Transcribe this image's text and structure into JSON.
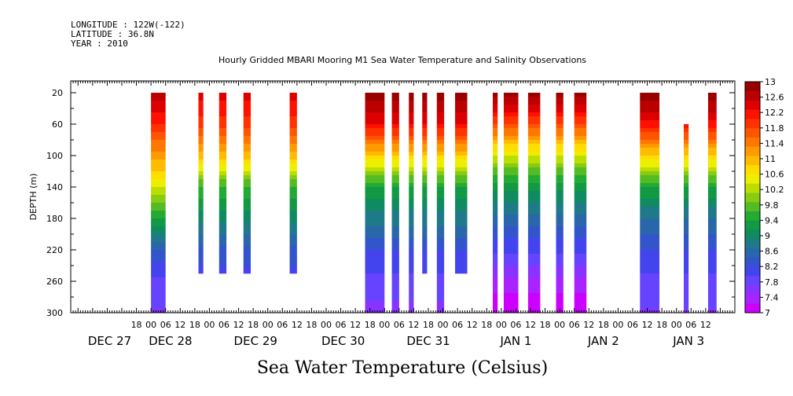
{
  "header": {
    "longitude": "LONGITUDE : 122W(-122)",
    "latitude": "LATITUDE : 36.8N",
    "year": "YEAR : 2010",
    "title": "Hourly Gridded MBARI Mooring M1 Sea Water Temperature and Salinity Observations"
  },
  "footer": {
    "variable_title": "Sea Water Temperature (Celsius)"
  },
  "chart_data": {
    "type": "heatmap",
    "title": "Hourly Gridded MBARI Mooring M1 Sea Water Temperature and Salinity Observations",
    "subtitle": "Sea Water Temperature (Celsius)",
    "ylabel": "DEPTH (m)",
    "ylim": [
      300,
      5
    ],
    "y_ticks": [
      20,
      60,
      100,
      140,
      180,
      220,
      260,
      300
    ],
    "x_range_hours": [
      -33,
      240
    ],
    "x_tick_labels": [
      {
        "hour": -6,
        "label": "18"
      },
      {
        "hour": 0,
        "label": "00"
      },
      {
        "hour": 6,
        "label": "06"
      },
      {
        "hour": 12,
        "label": "12"
      },
      {
        "hour": 18,
        "label": "18"
      },
      {
        "hour": 24,
        "label": "00"
      },
      {
        "hour": 30,
        "label": "06"
      },
      {
        "hour": 36,
        "label": "12"
      },
      {
        "hour": 42,
        "label": "18"
      },
      {
        "hour": 48,
        "label": "00"
      },
      {
        "hour": 54,
        "label": "06"
      },
      {
        "hour": 60,
        "label": "12"
      },
      {
        "hour": 66,
        "label": "18"
      },
      {
        "hour": 72,
        "label": "00"
      },
      {
        "hour": 78,
        "label": "06"
      },
      {
        "hour": 84,
        "label": "12"
      },
      {
        "hour": 90,
        "label": "18"
      },
      {
        "hour": 96,
        "label": "00"
      },
      {
        "hour": 102,
        "label": "06"
      },
      {
        "hour": 108,
        "label": "12"
      },
      {
        "hour": 114,
        "label": "18"
      },
      {
        "hour": 120,
        "label": "00"
      },
      {
        "hour": 126,
        "label": "06"
      },
      {
        "hour": 132,
        "label": "12"
      },
      {
        "hour": 138,
        "label": "18"
      },
      {
        "hour": 144,
        "label": "00"
      },
      {
        "hour": 150,
        "label": "06"
      },
      {
        "hour": 156,
        "label": "12"
      },
      {
        "hour": 162,
        "label": "18"
      },
      {
        "hour": 168,
        "label": "00"
      },
      {
        "hour": 174,
        "label": "06"
      },
      {
        "hour": 180,
        "label": "12"
      },
      {
        "hour": 186,
        "label": "18"
      },
      {
        "hour": 192,
        "label": "00"
      },
      {
        "hour": 198,
        "label": "06"
      },
      {
        "hour": 204,
        "label": "12"
      },
      {
        "hour": 210,
        "label": "18"
      },
      {
        "hour": 216,
        "label": "00"
      },
      {
        "hour": 222,
        "label": "06"
      },
      {
        "hour": 228,
        "label": "12"
      }
    ],
    "date_labels": [
      {
        "hour": -17,
        "label": "DEC 27"
      },
      {
        "hour": 8,
        "label": "DEC 28"
      },
      {
        "hour": 43,
        "label": "DEC 29"
      },
      {
        "hour": 79,
        "label": "DEC 30"
      },
      {
        "hour": 114,
        "label": "DEC 31"
      },
      {
        "hour": 150,
        "label": "JAN  1"
      },
      {
        "hour": 186,
        "label": "JAN  2"
      },
      {
        "hour": 221,
        "label": "JAN  3"
      }
    ],
    "colorbar": {
      "levels": [
        7,
        7.4,
        7.8,
        8.2,
        8.6,
        9,
        9.4,
        9.8,
        10.2,
        10.6,
        11,
        11.4,
        11.8,
        12.2,
        12.6,
        13
      ],
      "colors": [
        "#cc00ff",
        "#aa22ff",
        "#8833ff",
        "#6644ff",
        "#4444ee",
        "#3355cc",
        "#2a66aa",
        "#1e7a88",
        "#108a60",
        "#119944",
        "#22aa33",
        "#55bb22",
        "#88cc11",
        "#bbdd00",
        "#eeee00",
        "#ffdd00",
        "#ffbb00",
        "#ff9900",
        "#ff7700",
        "#ff5500",
        "#ff3300",
        "#ff1100",
        "#dd0000",
        "#bb0000",
        "#990000"
      ],
      "range": [
        7,
        13
      ]
    },
    "segments": [
      {
        "start": 0,
        "end": 6,
        "top": 20,
        "bottom": 300,
        "profile": "A"
      },
      {
        "start": 19.5,
        "end": 21.5,
        "top": 20,
        "bottom": 250,
        "profile": "B"
      },
      {
        "start": 28,
        "end": 31,
        "top": 20,
        "bottom": 250,
        "profile": "B"
      },
      {
        "start": 38,
        "end": 41,
        "top": 20,
        "bottom": 250,
        "profile": "B"
      },
      {
        "start": 57,
        "end": 60,
        "top": 20,
        "bottom": 250,
        "profile": "B"
      },
      {
        "start": 88,
        "end": 96,
        "top": 20,
        "bottom": 300,
        "profile": "C"
      },
      {
        "start": 99,
        "end": 102,
        "top": 20,
        "bottom": 300,
        "profile": "C"
      },
      {
        "start": 106,
        "end": 108,
        "top": 20,
        "bottom": 300,
        "profile": "C"
      },
      {
        "start": 111.5,
        "end": 113.5,
        "top": 20,
        "bottom": 250,
        "profile": "C"
      },
      {
        "start": 117.5,
        "end": 120.5,
        "top": 20,
        "bottom": 300,
        "profile": "C"
      },
      {
        "start": 125,
        "end": 130,
        "top": 20,
        "bottom": 250,
        "profile": "C"
      },
      {
        "start": 140.5,
        "end": 142.5,
        "top": 20,
        "bottom": 300,
        "profile": "D"
      },
      {
        "start": 145,
        "end": 151,
        "top": 20,
        "bottom": 300,
        "profile": "D"
      },
      {
        "start": 155,
        "end": 160,
        "top": 20,
        "bottom": 300,
        "profile": "D"
      },
      {
        "start": 166.5,
        "end": 169.5,
        "top": 20,
        "bottom": 300,
        "profile": "D"
      },
      {
        "start": 174,
        "end": 179,
        "top": 20,
        "bottom": 300,
        "profile": "D"
      },
      {
        "start": 201,
        "end": 209,
        "top": 20,
        "bottom": 300,
        "profile": "E"
      },
      {
        "start": 219,
        "end": 221,
        "top": 60,
        "bottom": 300,
        "profile": "E"
      },
      {
        "start": 229,
        "end": 232.5,
        "top": 20,
        "bottom": 300,
        "profile": "E"
      }
    ],
    "profiles": {
      "A": [
        [
          20,
          12.7
        ],
        [
          60,
          12.0
        ],
        [
          100,
          11.2
        ],
        [
          140,
          10.4
        ],
        [
          180,
          9.4
        ],
        [
          220,
          8.4
        ],
        [
          260,
          7.9
        ],
        [
          300,
          7.7
        ]
      ],
      "B": [
        [
          20,
          12.4
        ],
        [
          60,
          11.9
        ],
        [
          100,
          11.0
        ],
        [
          140,
          9.6
        ],
        [
          180,
          9.0
        ],
        [
          220,
          8.4
        ],
        [
          260,
          8.0
        ],
        [
          300,
          7.8
        ]
      ],
      "C": [
        [
          20,
          12.9
        ],
        [
          60,
          12.3
        ],
        [
          100,
          10.8
        ],
        [
          140,
          9.4
        ],
        [
          180,
          8.8
        ],
        [
          220,
          8.2
        ],
        [
          260,
          7.9
        ],
        [
          300,
          7.6
        ]
      ],
      "D": [
        [
          20,
          12.9
        ],
        [
          60,
          11.8
        ],
        [
          100,
          10.4
        ],
        [
          140,
          9.2
        ],
        [
          180,
          8.6
        ],
        [
          220,
          8.0
        ],
        [
          260,
          7.4
        ],
        [
          300,
          7.0
        ]
      ],
      "E": [
        [
          20,
          13.0
        ],
        [
          60,
          12.2
        ],
        [
          100,
          10.8
        ],
        [
          140,
          9.4
        ],
        [
          180,
          8.7
        ],
        [
          220,
          8.2
        ],
        [
          260,
          7.9
        ],
        [
          300,
          7.7
        ]
      ]
    }
  }
}
